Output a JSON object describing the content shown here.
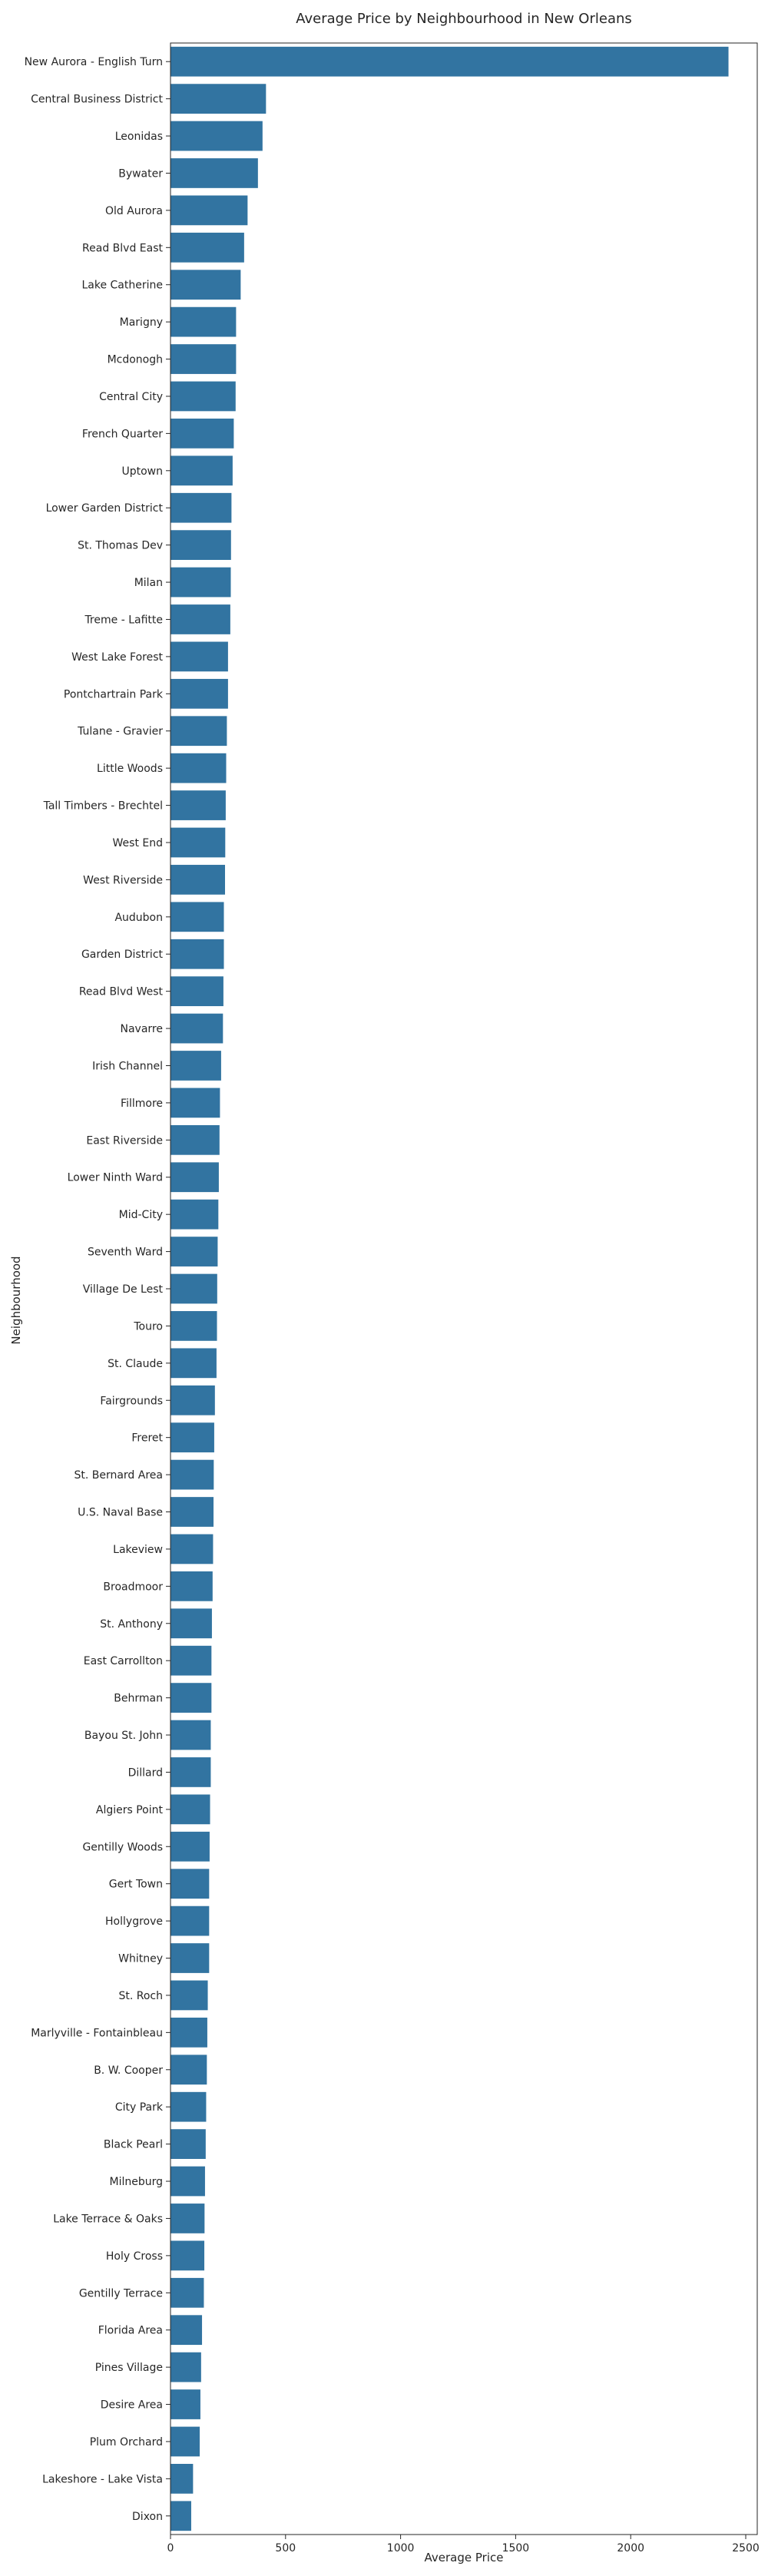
{
  "chart_data": {
    "type": "bar",
    "orientation": "horizontal",
    "title": "Average Price by Neighbourhood in New Orleans",
    "xlabel": "Average Price",
    "ylabel": "Neighbourhood",
    "xlim": [
      0,
      2550
    ],
    "xticks": [
      0,
      500,
      1000,
      1500,
      2000,
      2500
    ],
    "bar_color": "#3274a1",
    "grid": false,
    "categories": [
      "New Aurora - English Turn",
      "Central Business District",
      "Leonidas",
      "Bywater",
      "Old Aurora",
      "Read Blvd East",
      "Lake Catherine",
      "Marigny",
      "Mcdonogh",
      "Central City",
      "French Quarter",
      "Uptown",
      "Lower Garden District",
      "St. Thomas Dev",
      "Milan",
      "Treme - Lafitte",
      "West Lake Forest",
      "Pontchartrain Park",
      "Tulane - Gravier",
      "Little Woods",
      "Tall Timbers - Brechtel",
      "West End",
      "West Riverside",
      "Audubon",
      "Garden District",
      "Read Blvd West",
      "Navarre",
      "Irish Channel",
      "Fillmore",
      "East Riverside",
      "Lower Ninth Ward",
      "Mid-City",
      "Seventh Ward",
      "Village De Lest",
      "Touro",
      "St. Claude",
      "Fairgrounds",
      "Freret",
      "St. Bernard Area",
      "U.S. Naval Base",
      "Lakeview",
      "Broadmoor",
      "St.  Anthony",
      "East Carrollton",
      "Behrman",
      "Bayou St. John",
      "Dillard",
      "Algiers Point",
      "Gentilly Woods",
      "Gert Town",
      "Hollygrove",
      "Whitney",
      "St. Roch",
      "Marlyville - Fontainbleau",
      "B. W. Cooper",
      "City Park",
      "Black Pearl",
      "Milneburg",
      "Lake Terrace & Oaks",
      "Holy Cross",
      "Gentilly Terrace",
      "Florida Area",
      "Pines Village",
      "Desire Area",
      "Plum Orchard",
      "Lakeshore - Lake Vista",
      "Dixon"
    ],
    "values": [
      2425,
      415,
      400,
      380,
      335,
      320,
      305,
      285,
      285,
      283,
      275,
      270,
      265,
      263,
      262,
      260,
      250,
      250,
      245,
      242,
      240,
      238,
      237,
      232,
      232,
      230,
      228,
      220,
      215,
      213,
      210,
      208,
      205,
      203,
      202,
      200,
      193,
      190,
      188,
      187,
      185,
      183,
      180,
      178,
      178,
      175,
      175,
      172,
      170,
      168,
      168,
      168,
      162,
      160,
      158,
      155,
      153,
      150,
      148,
      147,
      145,
      137,
      133,
      130,
      127,
      98,
      90
    ]
  }
}
